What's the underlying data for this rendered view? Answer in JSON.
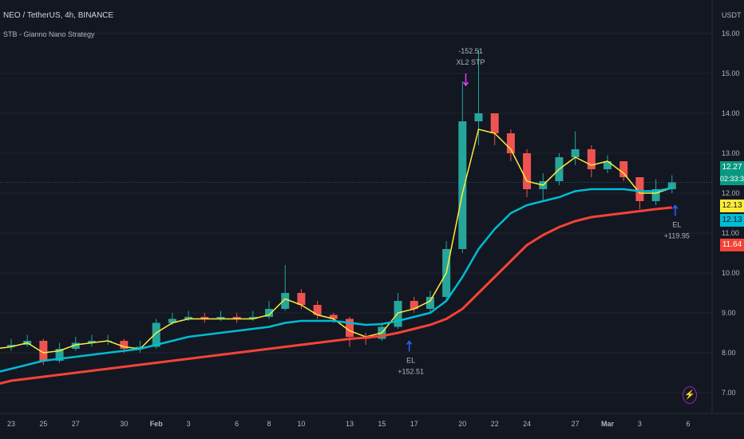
{
  "header": {
    "symbol": "NEO / TetherUS, 4h, BINANCE",
    "indicator": "STB - Gianno Nano Strategy"
  },
  "axis_unit": "USDT",
  "badges": {
    "last_price": "12.27",
    "countdown": "02:33:30",
    "yellow": "12.13",
    "cyan": "12.13",
    "red": "11.64"
  },
  "colors": {
    "up": "#26a69a",
    "down": "#ef5350",
    "fast_ma": "#ffeb3b",
    "mid_ma": "#00bcd4",
    "slow_ma": "#f44336",
    "background": "#131722",
    "marker": "#e040fb",
    "entry_arrow": "#2962ff"
  },
  "icons": {
    "replay": "lightning-icon"
  },
  "chart_data": {
    "type": "candlestick",
    "title": "NEO / TetherUS, 4h, BINANCE",
    "ylim": [
      6.6,
      16.4
    ],
    "yticks": [
      "7.00",
      "8.00",
      "9.00",
      "10.00",
      "11.00",
      "12.00",
      "13.00",
      "14.00",
      "15.00",
      "16.00"
    ],
    "xtick_labels": [
      {
        "day": 1,
        "label": "23"
      },
      {
        "day": 3,
        "label": "25"
      },
      {
        "day": 5,
        "label": "27"
      },
      {
        "day": 8,
        "label": "30"
      },
      {
        "day": 10,
        "label": "Feb"
      },
      {
        "day": 12,
        "label": "3"
      },
      {
        "day": 15,
        "label": "6"
      },
      {
        "day": 17,
        "label": "8"
      },
      {
        "day": 19,
        "label": "10"
      },
      {
        "day": 22,
        "label": "13"
      },
      {
        "day": 24,
        "label": "15"
      },
      {
        "day": 26,
        "label": "17"
      },
      {
        "day": 29,
        "label": "20"
      },
      {
        "day": 31,
        "label": "22"
      },
      {
        "day": 33,
        "label": "24"
      },
      {
        "day": 36,
        "label": "27"
      },
      {
        "day": 38,
        "label": "Mar"
      },
      {
        "day": 40,
        "label": "3"
      },
      {
        "day": 43,
        "label": "6"
      }
    ],
    "grid": true,
    "close": [
      8.15,
      8.2,
      8.3,
      7.8,
      8.1,
      8.25,
      8.3,
      8.3,
      8.1,
      8.15,
      8.75,
      8.85,
      8.9,
      8.85,
      8.9,
      8.85,
      8.9,
      9.1,
      9.5,
      9.2,
      8.95,
      8.85,
      8.4,
      8.35,
      8.65,
      9.3,
      9.1,
      9.4,
      10.6,
      13.8,
      14.0,
      13.5,
      13.0,
      12.1,
      12.3,
      12.9,
      13.1,
      12.6,
      12.8,
      12.4,
      11.8,
      12.1,
      12.27
    ],
    "high": [
      8.3,
      8.35,
      8.45,
      8.35,
      8.25,
      8.4,
      8.45,
      8.45,
      8.35,
      8.3,
      8.85,
      9.0,
      9.05,
      9.0,
      9.05,
      9.0,
      9.05,
      9.3,
      10.2,
      9.6,
      9.3,
      9.0,
      8.9,
      8.5,
      8.75,
      9.5,
      9.4,
      9.55,
      10.8,
      14.8,
      15.6,
      13.9,
      13.6,
      13.1,
      12.5,
      13.0,
      13.55,
      13.2,
      12.95,
      12.8,
      12.4,
      12.35,
      12.45
    ],
    "low": [
      8.0,
      8.05,
      8.15,
      7.7,
      7.75,
      8.05,
      8.15,
      8.2,
      8.0,
      8.0,
      8.1,
      8.7,
      8.8,
      8.75,
      8.8,
      8.75,
      8.8,
      8.85,
      9.05,
      9.1,
      8.85,
      8.75,
      8.15,
      8.2,
      8.3,
      8.6,
      9.0,
      9.0,
      9.35,
      10.5,
      13.2,
      13.2,
      12.8,
      11.9,
      11.8,
      12.2,
      12.7,
      12.4,
      12.5,
      12.3,
      11.6,
      11.7,
      12.0
    ],
    "series": [
      {
        "values": [
          8.1,
          8.15,
          8.25,
          8.0,
          8.05,
          8.2,
          8.25,
          8.3,
          8.15,
          8.1,
          8.5,
          8.75,
          8.85,
          8.85,
          8.85,
          8.85,
          8.85,
          8.95,
          9.35,
          9.2,
          8.95,
          8.85,
          8.55,
          8.4,
          8.5,
          9.0,
          9.1,
          9.3,
          10.0,
          12.0,
          13.6,
          13.5,
          13.1,
          12.3,
          12.2,
          12.6,
          12.9,
          12.7,
          12.8,
          12.5,
          12.0,
          12.0,
          12.13
        ]
      },
      {
        "values": [
          7.5,
          7.6,
          7.7,
          7.8,
          7.85,
          7.9,
          7.95,
          8.0,
          8.05,
          8.1,
          8.2,
          8.3,
          8.4,
          8.45,
          8.5,
          8.55,
          8.6,
          8.65,
          8.75,
          8.8,
          8.8,
          8.8,
          8.75,
          8.7,
          8.72,
          8.8,
          8.9,
          9.0,
          9.3,
          9.9,
          10.6,
          11.1,
          11.5,
          11.7,
          11.8,
          11.9,
          12.05,
          12.1,
          12.1,
          12.1,
          12.05,
          12.05,
          12.13
        ]
      },
      {
        "values": [
          7.2,
          7.3,
          7.35,
          7.4,
          7.45,
          7.5,
          7.55,
          7.6,
          7.65,
          7.7,
          7.75,
          7.8,
          7.85,
          7.9,
          7.95,
          8.0,
          8.05,
          8.1,
          8.15,
          8.2,
          8.25,
          8.3,
          8.35,
          8.38,
          8.42,
          8.5,
          8.6,
          8.7,
          8.85,
          9.1,
          9.5,
          9.9,
          10.3,
          10.7,
          10.95,
          11.15,
          11.3,
          11.4,
          11.45,
          11.5,
          11.55,
          11.6,
          11.64
        ]
      }
    ],
    "annotations": [
      {
        "day": 25.7,
        "price": 8.35,
        "lines": [
          "EL",
          "+152.51"
        ],
        "pos": "below"
      },
      {
        "day": 29.9,
        "price": 15.6,
        "lines": [
          "-152.51",
          "XL2 STP"
        ],
        "pos": "above"
      },
      {
        "day": 42.2,
        "price": 11.75,
        "lines": [
          "EL",
          "+119.95"
        ],
        "pos": "below"
      }
    ]
  }
}
